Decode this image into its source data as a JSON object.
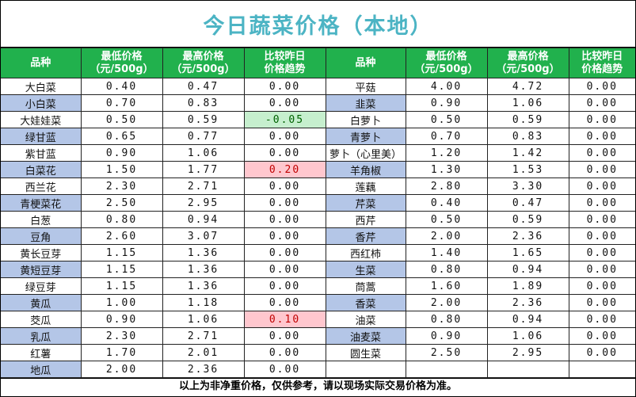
{
  "title": "今日蔬菜价格（本地）",
  "headers": {
    "name": "品种",
    "low": [
      "最低价格",
      "（元/500g）"
    ],
    "high": [
      "最高价格",
      "（元/500g）"
    ],
    "trend": [
      "比较昨日",
      "价格趋势"
    ]
  },
  "left": [
    {
      "name": "大白菜",
      "low": "0.40",
      "high": "0.47",
      "trend": "0.00"
    },
    {
      "name": "小白菜",
      "low": "0.70",
      "high": "0.83",
      "trend": "0.00"
    },
    {
      "name": "大娃娃菜",
      "low": "0.50",
      "high": "0.59",
      "trend": "-0.05",
      "flag": "down"
    },
    {
      "name": "绿甘蓝",
      "low": "0.65",
      "high": "0.77",
      "trend": "0.00"
    },
    {
      "name": "紫甘蓝",
      "low": "0.90",
      "high": "1.06",
      "trend": "0.00"
    },
    {
      "name": "白菜花",
      "low": "1.50",
      "high": "1.77",
      "trend": "0.20",
      "flag": "up"
    },
    {
      "name": "西兰花",
      "low": "2.30",
      "high": "2.71",
      "trend": "0.00"
    },
    {
      "name": "青梗菜花",
      "low": "2.50",
      "high": "2.95",
      "trend": "0.00"
    },
    {
      "name": "白葱",
      "low": "0.80",
      "high": "0.94",
      "trend": "0.00"
    },
    {
      "name": "豆角",
      "low": "2.60",
      "high": "3.07",
      "trend": "0.00"
    },
    {
      "name": "黄长豆芽",
      "low": "1.15",
      "high": "1.36",
      "trend": "0.00"
    },
    {
      "name": "黄短豆芽",
      "low": "1.15",
      "high": "1.36",
      "trend": "0.00"
    },
    {
      "name": "绿豆芽",
      "low": "1.15",
      "high": "1.36",
      "trend": "0.00"
    },
    {
      "name": "黄瓜",
      "low": "1.00",
      "high": "1.18",
      "trend": "0.00"
    },
    {
      "name": "茭瓜",
      "low": "0.90",
      "high": "1.06",
      "trend": "0.10",
      "flag": "up"
    },
    {
      "name": "乳瓜",
      "low": "2.30",
      "high": "2.71",
      "trend": "0.00"
    },
    {
      "name": "红薯",
      "low": "1.70",
      "high": "2.01",
      "trend": "0.00"
    },
    {
      "name": "地瓜",
      "low": "2.00",
      "high": "2.36",
      "trend": "0.00"
    }
  ],
  "right": [
    {
      "name": "平菇",
      "low": "4.00",
      "high": "4.72",
      "trend": "0.00"
    },
    {
      "name": "韭菜",
      "low": "0.90",
      "high": "1.06",
      "trend": "0.00"
    },
    {
      "name": "白萝卜",
      "low": "0.50",
      "high": "0.59",
      "trend": "0.00"
    },
    {
      "name": "青萝卜",
      "low": "0.70",
      "high": "0.83",
      "trend": "0.00"
    },
    {
      "name": "萝卜（心里美）",
      "low": "1.20",
      "high": "1.42",
      "trend": "0.00"
    },
    {
      "name": "羊角椒",
      "low": "1.30",
      "high": "1.53",
      "trend": "0.00"
    },
    {
      "name": "莲藕",
      "low": "2.80",
      "high": "3.30",
      "trend": "0.00"
    },
    {
      "name": "芹菜",
      "low": "0.40",
      "high": "0.47",
      "trend": "0.00"
    },
    {
      "name": "西芹",
      "low": "0.50",
      "high": "0.59",
      "trend": "0.00"
    },
    {
      "name": "香芹",
      "low": "2.00",
      "high": "2.36",
      "trend": "0.00"
    },
    {
      "name": "西红柿",
      "low": "1.40",
      "high": "1.65",
      "trend": "0.00"
    },
    {
      "name": "生菜",
      "low": "0.80",
      "high": "0.94",
      "trend": "0.00"
    },
    {
      "name": "茼蒿",
      "low": "1.60",
      "high": "1.89",
      "trend": "0.00"
    },
    {
      "name": "香菜",
      "low": "2.00",
      "high": "2.36",
      "trend": "0.00"
    },
    {
      "name": "油菜",
      "low": "0.80",
      "high": "0.94",
      "trend": "0.00"
    },
    {
      "name": "油麦菜",
      "low": "0.90",
      "high": "1.06",
      "trend": "0.00"
    },
    {
      "name": "圆生菜",
      "low": "2.50",
      "high": "2.95",
      "trend": "0.00"
    }
  ],
  "colors": {
    "title": "#4cb4c4",
    "header_bg": "#21b14d",
    "alt_row": "#b4c6e7",
    "up_bg": "#ffc7ce",
    "down_bg": "#c6efce"
  },
  "footer_note": "以上为非净重价格，仅供参考，请以现场实际交易价格为准。"
}
